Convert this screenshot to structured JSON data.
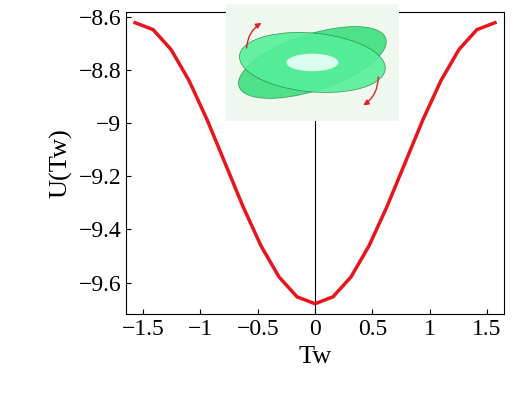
{
  "chart_data": {
    "type": "line",
    "x_label": "Tw",
    "y_label": "U(Tw)",
    "x": [
      -1.571,
      -1.414,
      -1.257,
      -1.1,
      -0.942,
      -0.785,
      -0.628,
      -0.471,
      -0.314,
      -0.157,
      0,
      0.157,
      0.314,
      0.471,
      0.628,
      0.785,
      0.942,
      1.1,
      1.257,
      1.414,
      1.571
    ],
    "values": [
      -8.62,
      -8.646,
      -8.721,
      -8.838,
      -8.986,
      -9.15,
      -9.314,
      -9.462,
      -9.579,
      -9.654,
      -9.68,
      -9.654,
      -9.579,
      -9.462,
      -9.314,
      -9.15,
      -8.986,
      -8.838,
      -8.721,
      -8.646,
      -8.62
    ],
    "color": "#e8141e",
    "xlim": [
      -1.65,
      1.65
    ],
    "ylim": [
      -9.72,
      -8.58
    ],
    "xticks": [
      {
        "value": -1.5,
        "label": "−1.5"
      },
      {
        "value": -1,
        "label": "−1"
      },
      {
        "value": -0.5,
        "label": "−0.5"
      },
      0,
      0.5,
      1,
      1.5
    ],
    "yticks": [
      {
        "value": -9.6,
        "label": "−9.6"
      },
      {
        "value": -9.4,
        "label": "−9.4"
      },
      {
        "value": -9.2,
        "label": "−9.2"
      },
      {
        "value": -9,
        "label": "−9"
      },
      {
        "value": -8.8,
        "label": "−8.8"
      },
      {
        "value": -8.6,
        "label": "−8.6"
      }
    ],
    "grid": false
  }
}
